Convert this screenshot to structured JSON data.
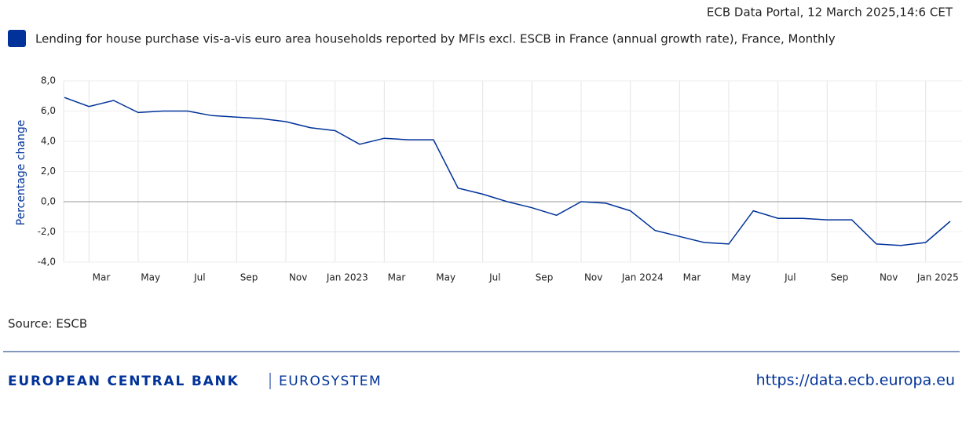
{
  "header": "ECB Data Portal, 12 March 2025,14:6 CET",
  "source": "Source: ESCB",
  "footer": {
    "bank": "EUROPEAN CENTRAL BANK",
    "system": "EUROSYSTEM",
    "url": "https://data.ecb.europa.eu"
  },
  "chart_data": {
    "type": "line",
    "y_label": "Percentage change",
    "categories": [
      null,
      null,
      "Mar",
      null,
      "May",
      null,
      "Jul",
      null,
      "Sep",
      null,
      "Nov",
      null,
      "Jan 2023",
      null,
      "Mar",
      null,
      "May",
      null,
      "Jul",
      null,
      "Sep",
      null,
      "Nov",
      null,
      "Jan 2024",
      null,
      "Mar",
      null,
      "May",
      null,
      "Jul",
      null,
      "Sep",
      null,
      "Nov",
      null,
      "Jan 2025"
    ],
    "series": [
      {
        "name": "Lending for house purchase vis-a-vis euro area households reported by MFIs excl. ESCB in France (annual growth rate), France, Monthly",
        "color": "#003299",
        "values": [
          6.9,
          6.3,
          6.7,
          5.9,
          6.0,
          6.0,
          5.7,
          5.6,
          5.5,
          5.3,
          4.9,
          4.7,
          3.8,
          4.2,
          4.1,
          4.1,
          0.9,
          0.5,
          0.0,
          -0.4,
          -0.9,
          0.0,
          -0.1,
          -0.6,
          -1.9,
          -2.3,
          -2.7,
          -2.8,
          -0.6,
          -1.1,
          -1.1,
          -1.2,
          -1.2,
          -2.8,
          -2.9,
          -2.7,
          -1.3
        ]
      }
    ],
    "ylim": [
      -4,
      8
    ],
    "yticks": [
      {
        "value": -4,
        "label": "-4,0"
      },
      {
        "value": -2,
        "label": "-2,0"
      },
      {
        "value": 0,
        "label": "0,0"
      },
      {
        "value": 2,
        "label": "2,0"
      },
      {
        "value": 4,
        "label": "4,0"
      },
      {
        "value": 6,
        "label": "6,0"
      },
      {
        "value": 8,
        "label": "8,0"
      }
    ],
    "grid": true
  }
}
